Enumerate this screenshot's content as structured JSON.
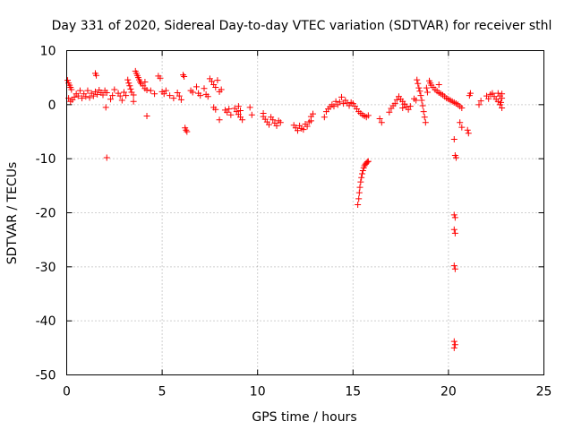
{
  "chart_data": {
    "type": "scatter",
    "title": "Day 331 of 2020, Sidereal Day-to-day VTEC variation (SDTVAR) for receiver sthl",
    "xlabel": "GPS time / hours",
    "ylabel": "SDTVAR / TECUs",
    "xlim": [
      0,
      25
    ],
    "ylim": [
      -50,
      10
    ],
    "xticks": [
      0,
      5,
      10,
      15,
      20,
      25
    ],
    "yticks": [
      -50,
      -40,
      -30,
      -20,
      -10,
      0,
      10
    ],
    "xtick_labels": [
      "0",
      "5",
      "10",
      "15",
      "20",
      "25"
    ],
    "ytick_labels": [
      "-50",
      "-40",
      "-30",
      "-20",
      "-10",
      "0",
      "10"
    ],
    "grid": true,
    "marker": "+",
    "color": "#ff0000",
    "series": [
      {
        "name": "SDTVAR",
        "points": [
          [
            0.05,
            4.5
          ],
          [
            0.1,
            4.0
          ],
          [
            0.15,
            3.6
          ],
          [
            0.2,
            3.2
          ],
          [
            0.25,
            2.8
          ],
          [
            0.1,
            1.2
          ],
          [
            0.2,
            0.6
          ],
          [
            0.3,
            0.9
          ],
          [
            0.4,
            1.4
          ],
          [
            0.5,
            2.0
          ],
          [
            0.6,
            1.6
          ],
          [
            0.7,
            2.6
          ],
          [
            0.8,
            1.2
          ],
          [
            0.9,
            2.0
          ],
          [
            1.0,
            1.5
          ],
          [
            1.1,
            2.6
          ],
          [
            1.2,
            1.3
          ],
          [
            1.3,
            2.1
          ],
          [
            1.4,
            1.6
          ],
          [
            1.5,
            2.4
          ],
          [
            1.6,
            1.9
          ],
          [
            1.5,
            5.8
          ],
          [
            1.55,
            5.4
          ],
          [
            1.7,
            2.7
          ],
          [
            1.8,
            2.2
          ],
          [
            1.9,
            1.8
          ],
          [
            2.0,
            2.6
          ],
          [
            2.1,
            2.2
          ],
          [
            2.05,
            -0.5
          ],
          [
            2.1,
            -9.8
          ],
          [
            2.3,
            1.0
          ],
          [
            2.4,
            1.7
          ],
          [
            2.5,
            2.8
          ],
          [
            2.7,
            2.1
          ],
          [
            2.8,
            1.6
          ],
          [
            2.9,
            0.8
          ],
          [
            3.0,
            2.3
          ],
          [
            3.1,
            1.7
          ],
          [
            3.2,
            4.6
          ],
          [
            3.25,
            4.0
          ],
          [
            3.3,
            3.5
          ],
          [
            3.35,
            2.9
          ],
          [
            3.4,
            2.3
          ],
          [
            3.5,
            1.8
          ],
          [
            3.5,
            0.6
          ],
          [
            3.6,
            6.2
          ],
          [
            3.65,
            5.8
          ],
          [
            3.7,
            5.4
          ],
          [
            3.75,
            5.0
          ],
          [
            3.8,
            4.6
          ],
          [
            3.85,
            4.2
          ],
          [
            3.9,
            3.9
          ],
          [
            4.0,
            3.5
          ],
          [
            4.1,
            3.0
          ],
          [
            4.2,
            2.7
          ],
          [
            4.1,
            4.2
          ],
          [
            4.2,
            -2.1
          ],
          [
            4.4,
            2.6
          ],
          [
            4.6,
            2.0
          ],
          [
            4.8,
            5.3
          ],
          [
            4.9,
            4.9
          ],
          [
            5.0,
            2.4
          ],
          [
            5.1,
            2.0
          ],
          [
            5.2,
            2.6
          ],
          [
            5.4,
            1.7
          ],
          [
            5.6,
            1.2
          ],
          [
            5.8,
            2.2
          ],
          [
            5.9,
            1.6
          ],
          [
            6.0,
            0.9
          ],
          [
            6.1,
            5.5
          ],
          [
            6.15,
            5.2
          ],
          [
            6.2,
            -4.3
          ],
          [
            6.25,
            -4.7
          ],
          [
            6.3,
            -5.0
          ],
          [
            6.5,
            2.6
          ],
          [
            6.6,
            2.3
          ],
          [
            6.8,
            3.3
          ],
          [
            6.9,
            2.1
          ],
          [
            7.0,
            1.7
          ],
          [
            7.2,
            3.0
          ],
          [
            7.3,
            1.9
          ],
          [
            7.4,
            1.5
          ],
          [
            7.5,
            4.8
          ],
          [
            7.6,
            4.3
          ],
          [
            7.7,
            3.7
          ],
          [
            7.8,
            3.2
          ],
          [
            7.9,
            4.5
          ],
          [
            7.7,
            -0.5
          ],
          [
            7.8,
            -0.9
          ],
          [
            8.0,
            2.4
          ],
          [
            8.1,
            2.8
          ],
          [
            8.0,
            -2.8
          ],
          [
            8.3,
            -1.0
          ],
          [
            8.4,
            -1.4
          ],
          [
            8.5,
            -0.8
          ],
          [
            8.6,
            -1.9
          ],
          [
            8.8,
            -0.7
          ],
          [
            8.9,
            -1.3
          ],
          [
            9.0,
            -1.8
          ],
          [
            9.1,
            -2.3
          ],
          [
            9.2,
            -2.8
          ],
          [
            9.0,
            -0.3
          ],
          [
            9.1,
            -1.1
          ],
          [
            9.6,
            -0.5
          ],
          [
            9.7,
            -1.9
          ],
          [
            10.3,
            -2.2
          ],
          [
            10.4,
            -2.7
          ],
          [
            10.5,
            -3.2
          ],
          [
            10.6,
            -3.7
          ],
          [
            10.7,
            -2.3
          ],
          [
            10.8,
            -2.8
          ],
          [
            10.9,
            -3.4
          ],
          [
            11.0,
            -3.9
          ],
          [
            11.1,
            -3.0
          ],
          [
            11.2,
            -3.3
          ],
          [
            10.3,
            -1.6
          ],
          [
            11.9,
            -3.8
          ],
          [
            12.0,
            -4.3
          ],
          [
            12.1,
            -4.8
          ],
          [
            12.2,
            -3.9
          ],
          [
            12.3,
            -4.4
          ],
          [
            12.4,
            -4.6
          ],
          [
            12.5,
            -3.6
          ],
          [
            12.6,
            -4.0
          ],
          [
            12.7,
            -3.2
          ],
          [
            12.8,
            -2.2
          ],
          [
            12.9,
            -1.7
          ],
          [
            12.8,
            -3.0
          ],
          [
            13.5,
            -2.3
          ],
          [
            13.6,
            -1.3
          ],
          [
            13.7,
            -0.8
          ],
          [
            13.8,
            -0.4
          ],
          [
            13.9,
            0.0
          ],
          [
            14.0,
            -0.3
          ],
          [
            14.1,
            0.6
          ],
          [
            14.2,
            0.0
          ],
          [
            14.3,
            0.5
          ],
          [
            14.4,
            1.4
          ],
          [
            14.5,
            0.2
          ],
          [
            14.6,
            0.8
          ],
          [
            14.7,
            0.3
          ],
          [
            14.8,
            -0.2
          ],
          [
            14.9,
            0.4
          ],
          [
            15.0,
            0.2
          ],
          [
            15.1,
            -0.3
          ],
          [
            15.2,
            -0.8
          ],
          [
            15.3,
            -1.3
          ],
          [
            15.4,
            -1.6
          ],
          [
            15.5,
            -1.9
          ],
          [
            15.6,
            -2.1
          ],
          [
            15.7,
            -2.3
          ],
          [
            15.8,
            -2.0
          ],
          [
            15.25,
            -18.5
          ],
          [
            15.3,
            -17.4
          ],
          [
            15.33,
            -16.3
          ],
          [
            15.36,
            -15.3
          ],
          [
            15.4,
            -14.3
          ],
          [
            15.44,
            -13.5
          ],
          [
            15.48,
            -12.8
          ],
          [
            15.52,
            -12.2
          ],
          [
            15.56,
            -11.7
          ],
          [
            15.6,
            -11.3
          ],
          [
            15.65,
            -11.0
          ],
          [
            15.7,
            -10.8
          ],
          [
            15.75,
            -10.6
          ],
          [
            15.8,
            -10.5
          ],
          [
            16.4,
            -2.6
          ],
          [
            16.5,
            -3.3
          ],
          [
            16.9,
            -1.4
          ],
          [
            17.0,
            -0.7
          ],
          [
            17.1,
            -0.2
          ],
          [
            17.2,
            0.2
          ],
          [
            17.3,
            0.9
          ],
          [
            17.4,
            1.5
          ],
          [
            17.5,
            1.0
          ],
          [
            17.6,
            0.6
          ],
          [
            17.7,
            0.1
          ],
          [
            17.8,
            -0.4
          ],
          [
            17.9,
            -0.9
          ],
          [
            17.6,
            -0.6
          ],
          [
            17.7,
            0.1
          ],
          [
            18.0,
            -0.3
          ],
          [
            18.2,
            1.1
          ],
          [
            18.3,
            0.8
          ],
          [
            18.35,
            4.6
          ],
          [
            18.4,
            3.9
          ],
          [
            18.45,
            3.1
          ],
          [
            18.5,
            2.5
          ],
          [
            18.55,
            1.7
          ],
          [
            18.6,
            0.8
          ],
          [
            18.65,
            -0.2
          ],
          [
            18.7,
            -1.3
          ],
          [
            18.75,
            -2.3
          ],
          [
            18.8,
            -3.3
          ],
          [
            18.85,
            3.1
          ],
          [
            18.9,
            2.3
          ],
          [
            19.0,
            4.4
          ],
          [
            19.05,
            4.0
          ],
          [
            19.1,
            3.6
          ],
          [
            19.2,
            3.2
          ],
          [
            19.3,
            2.8
          ],
          [
            19.4,
            2.5
          ],
          [
            19.5,
            2.2
          ],
          [
            19.6,
            2.0
          ],
          [
            19.7,
            1.8
          ],
          [
            19.8,
            1.5
          ],
          [
            19.9,
            1.2
          ],
          [
            20.0,
            1.0
          ],
          [
            20.1,
            0.8
          ],
          [
            20.2,
            0.6
          ],
          [
            20.3,
            0.4
          ],
          [
            20.4,
            0.2
          ],
          [
            20.5,
            0.0
          ],
          [
            20.6,
            -0.3
          ],
          [
            20.7,
            -0.6
          ],
          [
            19.5,
            3.7
          ],
          [
            20.6,
            -3.3
          ],
          [
            20.7,
            -4.2
          ],
          [
            20.3,
            -6.4
          ],
          [
            20.35,
            -9.4
          ],
          [
            20.4,
            -9.8
          ],
          [
            20.3,
            -20.4
          ],
          [
            20.35,
            -20.9
          ],
          [
            20.3,
            -23.1
          ],
          [
            20.35,
            -23.8
          ],
          [
            20.3,
            -29.8
          ],
          [
            20.35,
            -30.4
          ],
          [
            20.3,
            -43.8
          ],
          [
            20.35,
            -44.4
          ],
          [
            20.3,
            -45.0
          ],
          [
            21.0,
            -4.7
          ],
          [
            21.05,
            -5.3
          ],
          [
            21.1,
            1.7
          ],
          [
            21.15,
            2.1
          ],
          [
            21.6,
            0.0
          ],
          [
            21.7,
            0.7
          ],
          [
            22.0,
            1.6
          ],
          [
            22.1,
            1.1
          ],
          [
            22.2,
            1.9
          ],
          [
            22.3,
            2.1
          ],
          [
            22.4,
            1.5
          ],
          [
            22.5,
            1.0
          ],
          [
            22.6,
            0.6
          ],
          [
            22.7,
            0.0
          ],
          [
            22.8,
            -0.6
          ],
          [
            22.6,
            2.1
          ],
          [
            22.7,
            1.6
          ],
          [
            22.8,
            1.2
          ],
          [
            22.75,
            0.4
          ],
          [
            22.8,
            2.0
          ]
        ]
      }
    ]
  }
}
